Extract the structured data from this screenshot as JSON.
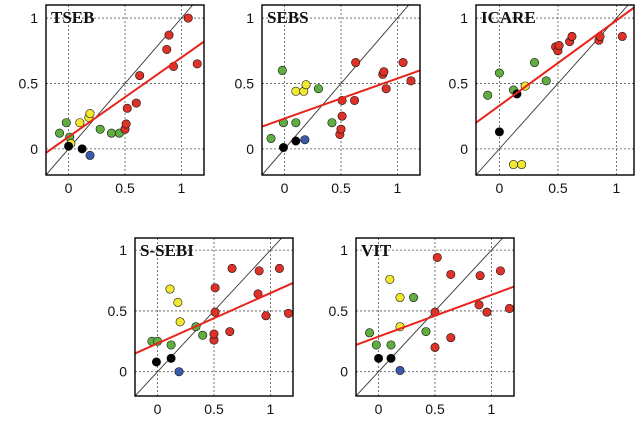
{
  "colors": {
    "green": "#5fae3f",
    "yellow": "#f2e82f",
    "red": "#dd3228",
    "black": "#000000",
    "blue": "#3a5aa8",
    "fit": "#e8241c"
  },
  "chart_data": [
    {
      "type": "scatter",
      "title": "TSEB",
      "xlim": [
        -0.2,
        1.2
      ],
      "ylim": [
        -0.2,
        1.1
      ],
      "xticks": [
        0,
        0.5,
        1
      ],
      "yticks": [
        0,
        0.5,
        1
      ],
      "xtick_labels": [
        "0",
        "0.5",
        "1"
      ],
      "ytick_labels": [
        "0",
        "0.5",
        "1"
      ],
      "grid": true,
      "identity_line": true,
      "fit_line": {
        "x": [
          -0.2,
          1.2
        ],
        "y": [
          -0.03,
          0.82
        ]
      },
      "points": [
        {
          "x": -0.08,
          "y": 0.12,
          "c": "green"
        },
        {
          "x": -0.02,
          "y": 0.2,
          "c": "green"
        },
        {
          "x": 0.01,
          "y": 0.09,
          "c": "green"
        },
        {
          "x": 0.28,
          "y": 0.15,
          "c": "green"
        },
        {
          "x": 0.38,
          "y": 0.12,
          "c": "green"
        },
        {
          "x": 0.45,
          "y": 0.12,
          "c": "green"
        },
        {
          "x": 0.02,
          "y": 0.04,
          "c": "yellow"
        },
        {
          "x": 0.1,
          "y": 0.2,
          "c": "yellow"
        },
        {
          "x": 0.18,
          "y": 0.24,
          "c": "yellow"
        },
        {
          "x": 0.19,
          "y": 0.27,
          "c": "yellow"
        },
        {
          "x": 0.0,
          "y": 0.02,
          "c": "black"
        },
        {
          "x": 0.12,
          "y": 0.0,
          "c": "black"
        },
        {
          "x": 0.19,
          "y": -0.05,
          "c": "blue"
        },
        {
          "x": 0.5,
          "y": 0.15,
          "c": "red"
        },
        {
          "x": 0.51,
          "y": 0.19,
          "c": "red"
        },
        {
          "x": 0.52,
          "y": 0.31,
          "c": "red"
        },
        {
          "x": 0.6,
          "y": 0.35,
          "c": "red"
        },
        {
          "x": 0.63,
          "y": 0.56,
          "c": "red"
        },
        {
          "x": 0.87,
          "y": 0.76,
          "c": "red"
        },
        {
          "x": 0.89,
          "y": 0.87,
          "c": "red"
        },
        {
          "x": 0.93,
          "y": 0.63,
          "c": "red"
        },
        {
          "x": 1.06,
          "y": 1.0,
          "c": "red"
        },
        {
          "x": 1.14,
          "y": 0.65,
          "c": "red"
        }
      ]
    },
    {
      "type": "scatter",
      "title": "SEBS",
      "xlim": [
        -0.2,
        1.2
      ],
      "ylim": [
        -0.2,
        1.1
      ],
      "xticks": [
        0,
        0.5,
        1
      ],
      "yticks": [
        0,
        0.5,
        1
      ],
      "xtick_labels": [
        "0",
        "0.5",
        "1"
      ],
      "ytick_labels": [
        "0",
        "0.5",
        "1"
      ],
      "grid": true,
      "identity_line": true,
      "fit_line": {
        "x": [
          -0.2,
          1.2
        ],
        "y": [
          0.17,
          0.6
        ]
      },
      "points": [
        {
          "x": -0.12,
          "y": 0.08,
          "c": "green"
        },
        {
          "x": -0.02,
          "y": 0.6,
          "c": "green"
        },
        {
          "x": -0.01,
          "y": 0.2,
          "c": "green"
        },
        {
          "x": 0.1,
          "y": 0.2,
          "c": "green"
        },
        {
          "x": 0.3,
          "y": 0.46,
          "c": "green"
        },
        {
          "x": 0.42,
          "y": 0.2,
          "c": "green"
        },
        {
          "x": 0.1,
          "y": 0.44,
          "c": "yellow"
        },
        {
          "x": 0.17,
          "y": 0.44,
          "c": "yellow"
        },
        {
          "x": 0.19,
          "y": 0.49,
          "c": "yellow"
        },
        {
          "x": -0.01,
          "y": 0.01,
          "c": "black"
        },
        {
          "x": 0.1,
          "y": 0.06,
          "c": "black"
        },
        {
          "x": 0.18,
          "y": 0.07,
          "c": "blue"
        },
        {
          "x": 0.49,
          "y": 0.11,
          "c": "red"
        },
        {
          "x": 0.5,
          "y": 0.15,
          "c": "red"
        },
        {
          "x": 0.51,
          "y": 0.25,
          "c": "red"
        },
        {
          "x": 0.51,
          "y": 0.37,
          "c": "red"
        },
        {
          "x": 0.62,
          "y": 0.37,
          "c": "red"
        },
        {
          "x": 0.63,
          "y": 0.66,
          "c": "red"
        },
        {
          "x": 0.87,
          "y": 0.57,
          "c": "red"
        },
        {
          "x": 0.88,
          "y": 0.59,
          "c": "red"
        },
        {
          "x": 0.9,
          "y": 0.46,
          "c": "red"
        },
        {
          "x": 1.05,
          "y": 0.66,
          "c": "red"
        },
        {
          "x": 1.12,
          "y": 0.52,
          "c": "red"
        }
      ]
    },
    {
      "type": "scatter",
      "title": "ICARE",
      "xlim": [
        -0.2,
        1.15
      ],
      "ylim": [
        -0.2,
        1.1
      ],
      "xticks": [
        0,
        0.5,
        1
      ],
      "yticks": [
        0,
        0.5,
        1
      ],
      "xtick_labels": [
        "0",
        "0.5",
        "1"
      ],
      "ytick_labels": [
        "0",
        "0.5",
        "1"
      ],
      "grid": true,
      "identity_line": true,
      "fit_line": {
        "x": [
          -0.2,
          1.15
        ],
        "y": [
          0.2,
          1.08
        ]
      },
      "points": [
        {
          "x": -0.1,
          "y": 0.41,
          "c": "green"
        },
        {
          "x": 0.0,
          "y": 0.58,
          "c": "green"
        },
        {
          "x": 0.12,
          "y": 0.45,
          "c": "green"
        },
        {
          "x": 0.3,
          "y": 0.66,
          "c": "green"
        },
        {
          "x": 0.4,
          "y": 0.52,
          "c": "green"
        },
        {
          "x": 0.12,
          "y": -0.12,
          "c": "yellow"
        },
        {
          "x": 0.19,
          "y": -0.12,
          "c": "yellow"
        },
        {
          "x": 0.22,
          "y": 0.48,
          "c": "yellow"
        },
        {
          "x": 0.0,
          "y": 0.13,
          "c": "black"
        },
        {
          "x": 0.15,
          "y": 0.42,
          "c": "black"
        },
        {
          "x": 0.48,
          "y": 0.78,
          "c": "red"
        },
        {
          "x": 0.5,
          "y": 0.75,
          "c": "red"
        },
        {
          "x": 0.51,
          "y": 0.79,
          "c": "red"
        },
        {
          "x": 0.6,
          "y": 0.82,
          "c": "red"
        },
        {
          "x": 0.62,
          "y": 0.86,
          "c": "red"
        },
        {
          "x": 0.85,
          "y": 0.83,
          "c": "red"
        },
        {
          "x": 0.86,
          "y": 0.86,
          "c": "red"
        },
        {
          "x": 1.05,
          "y": 0.86,
          "c": "red"
        }
      ]
    },
    {
      "type": "scatter",
      "title": "S-SEBI",
      "xlim": [
        -0.2,
        1.2
      ],
      "ylim": [
        -0.2,
        1.1
      ],
      "xticks": [
        0,
        0.5,
        1
      ],
      "yticks": [
        0,
        0.5,
        1
      ],
      "xtick_labels": [
        "0",
        "0.5",
        "1"
      ],
      "ytick_labels": [
        "0",
        "0.5",
        "1"
      ],
      "grid": true,
      "identity_line": true,
      "fit_line": {
        "x": [
          -0.2,
          1.2
        ],
        "y": [
          0.15,
          0.73
        ]
      },
      "points": [
        {
          "x": -0.05,
          "y": 0.25,
          "c": "green"
        },
        {
          "x": 0.0,
          "y": 0.25,
          "c": "green"
        },
        {
          "x": 0.12,
          "y": 0.22,
          "c": "green"
        },
        {
          "x": 0.34,
          "y": 0.37,
          "c": "green"
        },
        {
          "x": 0.4,
          "y": 0.3,
          "c": "green"
        },
        {
          "x": 0.11,
          "y": 0.68,
          "c": "yellow"
        },
        {
          "x": 0.18,
          "y": 0.57,
          "c": "yellow"
        },
        {
          "x": 0.2,
          "y": 0.41,
          "c": "yellow"
        },
        {
          "x": -0.01,
          "y": 0.08,
          "c": "black"
        },
        {
          "x": 0.12,
          "y": 0.11,
          "c": "black"
        },
        {
          "x": 0.19,
          "y": 0.0,
          "c": "blue"
        },
        {
          "x": 0.5,
          "y": 0.26,
          "c": "red"
        },
        {
          "x": 0.5,
          "y": 0.31,
          "c": "red"
        },
        {
          "x": 0.51,
          "y": 0.49,
          "c": "red"
        },
        {
          "x": 0.51,
          "y": 0.69,
          "c": "red"
        },
        {
          "x": 0.64,
          "y": 0.33,
          "c": "red"
        },
        {
          "x": 0.66,
          "y": 0.85,
          "c": "red"
        },
        {
          "x": 0.89,
          "y": 0.64,
          "c": "red"
        },
        {
          "x": 0.9,
          "y": 0.83,
          "c": "red"
        },
        {
          "x": 0.96,
          "y": 0.46,
          "c": "red"
        },
        {
          "x": 1.08,
          "y": 0.85,
          "c": "red"
        },
        {
          "x": 1.16,
          "y": 0.48,
          "c": "red"
        }
      ]
    },
    {
      "type": "scatter",
      "title": "VIT",
      "xlim": [
        -0.2,
        1.2
      ],
      "ylim": [
        -0.2,
        1.1
      ],
      "xticks": [
        0,
        0.5,
        1
      ],
      "yticks": [
        0,
        0.5,
        1
      ],
      "xtick_labels": [
        "0",
        "0.5",
        "1"
      ],
      "ytick_labels": [
        "0",
        "0.5",
        "1"
      ],
      "grid": true,
      "identity_line": true,
      "fit_line": {
        "x": [
          -0.2,
          1.2
        ],
        "y": [
          0.22,
          0.7
        ]
      },
      "points": [
        {
          "x": -0.08,
          "y": 0.32,
          "c": "green"
        },
        {
          "x": -0.02,
          "y": 0.22,
          "c": "green"
        },
        {
          "x": 0.11,
          "y": 0.22,
          "c": "green"
        },
        {
          "x": 0.31,
          "y": 0.61,
          "c": "green"
        },
        {
          "x": 0.42,
          "y": 0.33,
          "c": "green"
        },
        {
          "x": 0.1,
          "y": 0.76,
          "c": "yellow"
        },
        {
          "x": 0.19,
          "y": 0.61,
          "c": "yellow"
        },
        {
          "x": 0.19,
          "y": 0.37,
          "c": "yellow"
        },
        {
          "x": 0.0,
          "y": 0.11,
          "c": "black"
        },
        {
          "x": 0.11,
          "y": 0.11,
          "c": "black"
        },
        {
          "x": 0.19,
          "y": 0.01,
          "c": "blue"
        },
        {
          "x": 0.5,
          "y": 0.2,
          "c": "red"
        },
        {
          "x": 0.5,
          "y": 0.49,
          "c": "red"
        },
        {
          "x": 0.52,
          "y": 0.94,
          "c": "red"
        },
        {
          "x": 0.64,
          "y": 0.28,
          "c": "red"
        },
        {
          "x": 0.64,
          "y": 0.8,
          "c": "red"
        },
        {
          "x": 0.89,
          "y": 0.55,
          "c": "red"
        },
        {
          "x": 0.9,
          "y": 0.79,
          "c": "red"
        },
        {
          "x": 0.96,
          "y": 0.49,
          "c": "red"
        },
        {
          "x": 1.08,
          "y": 0.83,
          "c": "red"
        },
        {
          "x": 1.16,
          "y": 0.52,
          "c": "red"
        }
      ]
    }
  ]
}
